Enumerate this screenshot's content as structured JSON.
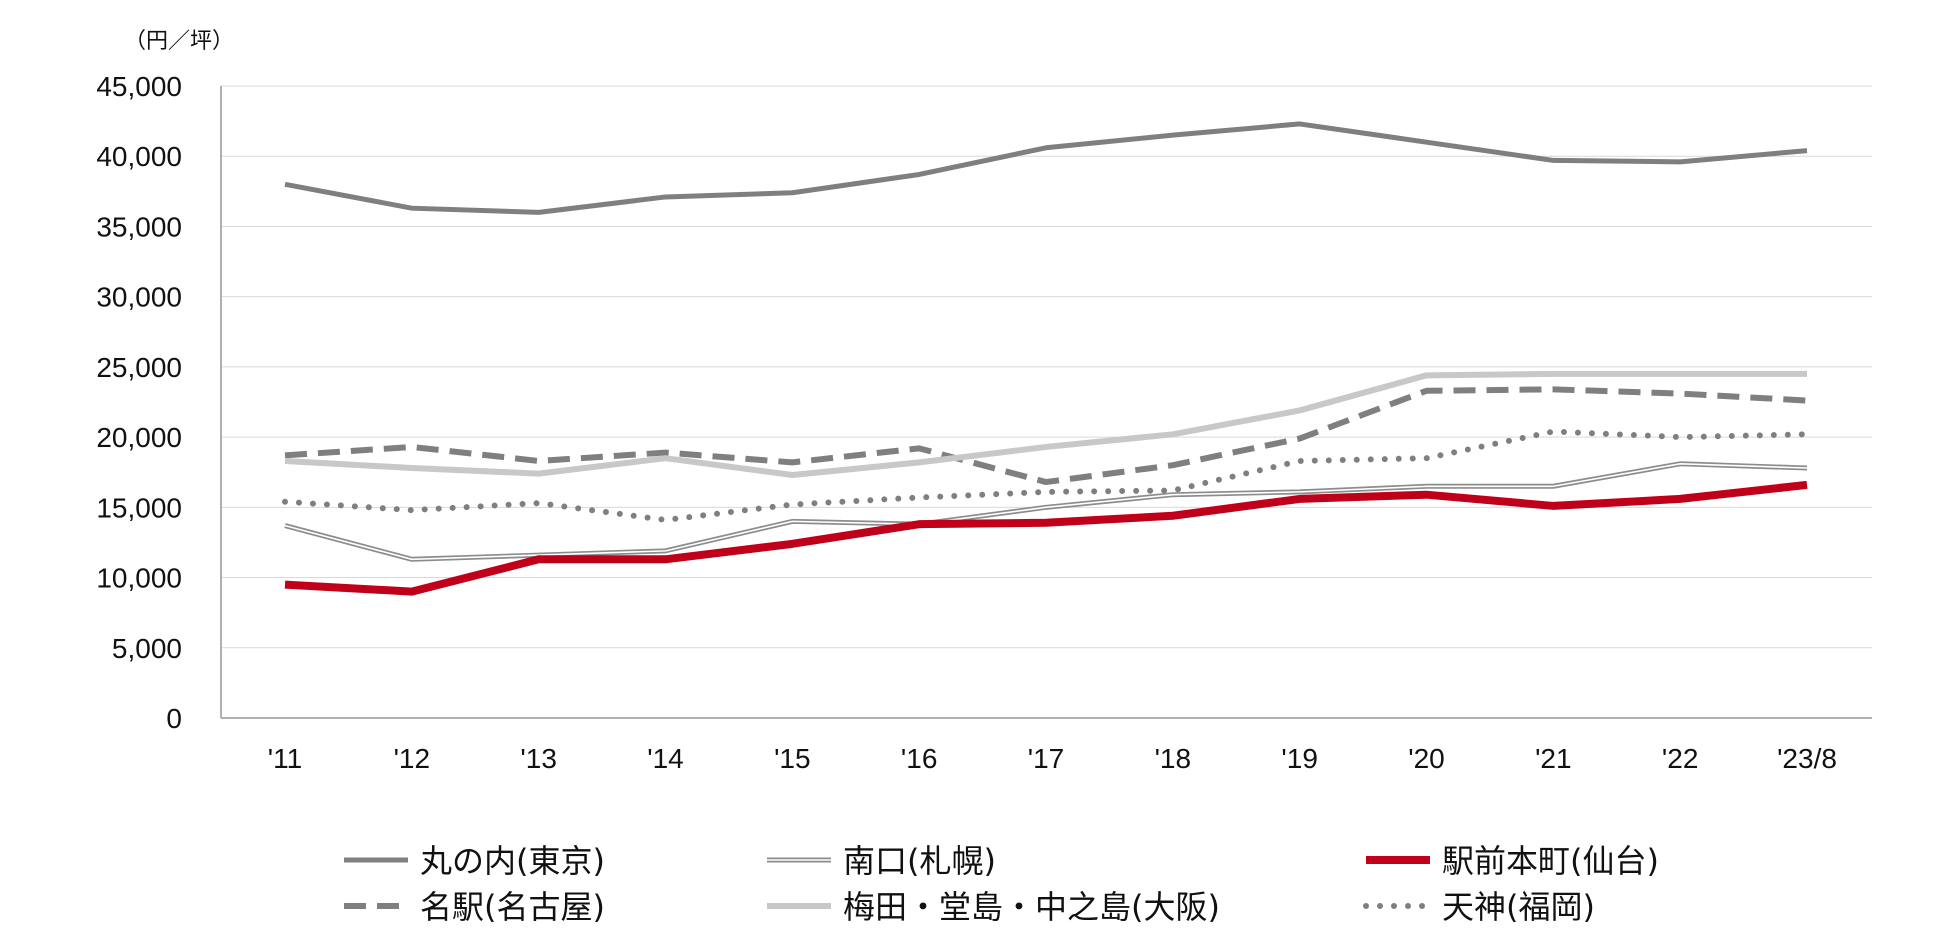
{
  "chart_data": {
    "type": "line",
    "ylabel": "（円／坪）",
    "ylim": [
      0,
      45000
    ],
    "yticks": [
      0,
      5000,
      10000,
      15000,
      20000,
      25000,
      30000,
      35000,
      40000,
      45000
    ],
    "ytick_labels": [
      "0",
      "5,000",
      "10,000",
      "15,000",
      "20,000",
      "25,000",
      "30,000",
      "35,000",
      "40,000",
      "45,000"
    ],
    "categories": [
      "'11",
      "'12",
      "'13",
      "'14",
      "'15",
      "'16",
      "'17",
      "'18",
      "'19",
      "'20",
      "'21",
      "'22",
      "'23/8"
    ],
    "grid": true,
    "legend_position": "bottom",
    "series": [
      {
        "name": "丸の内(東京)",
        "style": "solid",
        "color": "#7f7f7f",
        "width": 5,
        "values": [
          38000,
          36300,
          36000,
          37100,
          37400,
          38700,
          40600,
          41500,
          42300,
          41000,
          39700,
          39600,
          40400
        ]
      },
      {
        "name": "南口(札幌)",
        "style": "double",
        "color": "#8c8c8c",
        "width": 5,
        "values": [
          13700,
          11300,
          11600,
          11900,
          14000,
          13800,
          15000,
          15900,
          16100,
          16500,
          16500,
          18100,
          17800
        ]
      },
      {
        "name": "駅前本町(仙台)",
        "style": "solid",
        "color": "#c0001a",
        "width": 8,
        "values": [
          9500,
          9000,
          11300,
          11300,
          12400,
          13800,
          13900,
          14400,
          15600,
          15900,
          15100,
          15600,
          16600
        ]
      },
      {
        "name": "名駅(名古屋)",
        "style": "dashed",
        "color": "#7f7f7f",
        "width": 6,
        "values": [
          18700,
          19300,
          18300,
          18900,
          18200,
          19200,
          16800,
          18000,
          19900,
          23300,
          23400,
          23100,
          22600
        ]
      },
      {
        "name": "梅田・堂島・中之島(大阪)",
        "style": "solid",
        "color": "#c8c8c8",
        "width": 6,
        "values": [
          18300,
          17800,
          17400,
          18500,
          17300,
          18200,
          19300,
          20200,
          21900,
          24400,
          24500,
          24500,
          24500
        ]
      },
      {
        "name": "天神(福岡)",
        "style": "dotted",
        "color": "#7f7f7f",
        "width": 6,
        "values": [
          15400,
          14800,
          15300,
          14100,
          15200,
          15700,
          16100,
          16200,
          18300,
          18500,
          20400,
          20000,
          20200
        ]
      }
    ]
  }
}
